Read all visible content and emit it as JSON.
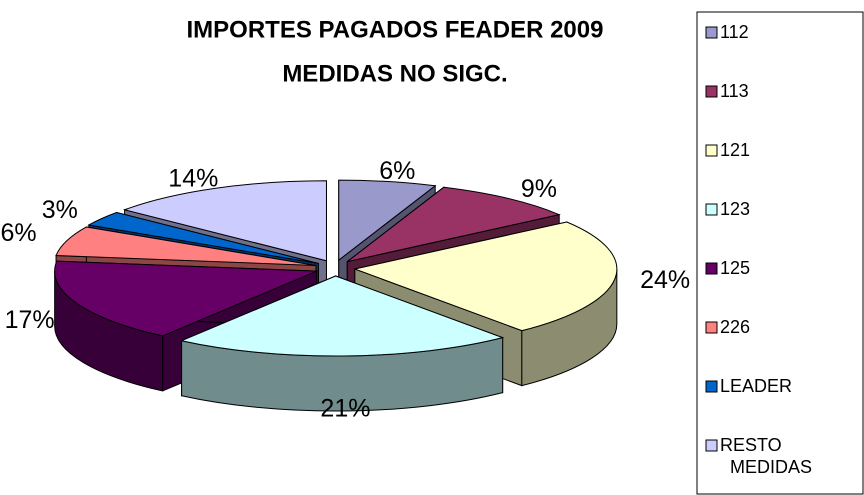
{
  "chart_data": {
    "type": "pie3d",
    "title": [
      "IMPORTES PAGADOS FEADER 2009",
      "MEDIDAS NO SIGC."
    ],
    "categories": [
      "112",
      "113",
      "121",
      "123",
      "125",
      "226",
      "LEADER",
      "RESTO MEDIDAS"
    ],
    "values": [
      6,
      9,
      24,
      21,
      17,
      6,
      3,
      14
    ],
    "value_labels": [
      "6%",
      "9%",
      "24%",
      "21%",
      "17%",
      "6%",
      "3%",
      "14%"
    ],
    "colors": [
      "#9999cc",
      "#993366",
      "#ffffcc",
      "#ccffff",
      "#660066",
      "#ff8080",
      "#0066cc",
      "#ccccff"
    ],
    "legend": "right"
  }
}
